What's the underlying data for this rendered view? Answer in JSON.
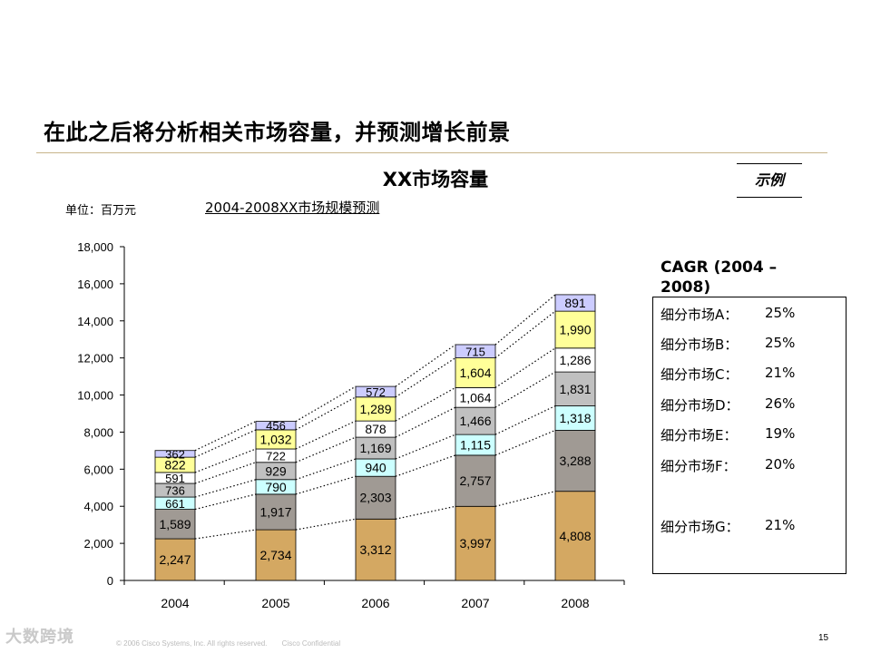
{
  "slide": {
    "title": "在此之后将分析相关市场容量，并预测增长前景",
    "chart_heading": "XX市场容量",
    "example_label": "示例",
    "unit_label": "单位：百万元",
    "page_number": "15",
    "footer_copyright": "© 2006 Cisco Systems, Inc. All rights reserved.",
    "footer_confidential": "Cisco Confidential",
    "watermark": "大数跨境"
  },
  "cagr": {
    "title": "CAGR (2004 – 2008)",
    "rows": [
      {
        "label": "细分市场A：",
        "value": "25%"
      },
      {
        "label": "细分市场B：",
        "value": "25%"
      },
      {
        "label": "细分市场C：",
        "value": "21%"
      },
      {
        "label": "细分市场D：",
        "value": "26%"
      },
      {
        "label": "细分市场E：",
        "value": "19%"
      },
      {
        "label": "细分市场F：",
        "value": "20%"
      },
      {
        "label": "细分市场G：",
        "value": "21%"
      }
    ]
  },
  "chart_data": {
    "type": "bar",
    "stacked": true,
    "title": "2004-2008XX市场规模预测",
    "xlabel": "",
    "ylabel": "",
    "ylim": [
      0,
      18000
    ],
    "yticks": [
      0,
      2000,
      4000,
      6000,
      8000,
      10000,
      12000,
      14000,
      16000,
      18000
    ],
    "ytick_labels": [
      "0",
      "2,000",
      "4,000",
      "6,000",
      "8,000",
      "10,000",
      "12,000",
      "14,000",
      "16,000",
      "18,000"
    ],
    "categories": [
      "2004",
      "2005",
      "2006",
      "2007",
      "2008"
    ],
    "series": [
      {
        "name": "G",
        "color": "#d4a862",
        "values": [
          2247,
          2734,
          3312,
          3997,
          4808
        ],
        "labels": [
          "2,247",
          "2,734",
          "3,312",
          "3,997",
          "4,808"
        ]
      },
      {
        "name": "F",
        "color": "#a09a94",
        "values": [
          1589,
          1917,
          2303,
          2757,
          3288
        ],
        "labels": [
          "1,589",
          "1,917",
          "2,303",
          "2,757",
          "3,288"
        ]
      },
      {
        "name": "E",
        "color": "#ccffff",
        "values": [
          661,
          790,
          940,
          1115,
          1318
        ],
        "labels": [
          "661",
          "790",
          "940",
          "1,115",
          "1,318"
        ]
      },
      {
        "name": "D",
        "color": "#c0c0c0",
        "values": [
          736,
          929,
          1169,
          1466,
          1831
        ],
        "labels": [
          "736",
          "929",
          "1,169",
          "1,466",
          "1,831"
        ]
      },
      {
        "name": "C",
        "color": "#ffffff",
        "values": [
          591,
          722,
          878,
          1064,
          1286
        ],
        "labels": [
          "591",
          "722",
          "878",
          "1,064",
          "1,286"
        ]
      },
      {
        "name": "B",
        "color": "#ffff99",
        "values": [
          822,
          1032,
          1289,
          1604,
          1990
        ],
        "labels": [
          "822",
          "1,032",
          "1,289",
          "1,604",
          "1,990"
        ]
      },
      {
        "name": "A",
        "color": "#ccccff",
        "values": [
          362,
          456,
          572,
          715,
          891
        ],
        "labels": [
          "362",
          "456",
          "572",
          "715",
          "891"
        ]
      }
    ],
    "grid": false,
    "connector_lines": "dotted"
  }
}
